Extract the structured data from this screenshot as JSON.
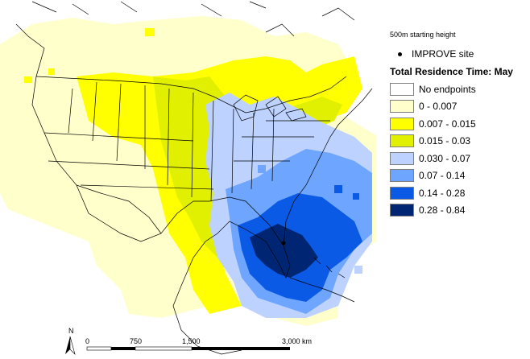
{
  "legend": {
    "subtitle": "500m starting height",
    "site_label": "IMPROVE site",
    "title": "Total Residence Time: May",
    "classes": [
      {
        "label": "No endpoints",
        "color": "#ffffff"
      },
      {
        "label": "0 - 0.007",
        "color": "#ffffcc"
      },
      {
        "label": "0.007 - 0.015",
        "color": "#ffff00"
      },
      {
        "label": "0.015 - 0.03",
        "color": "#e1f000"
      },
      {
        "label": "0.030 - 0.07",
        "color": "#bed2ff"
      },
      {
        "label": "0.07 - 0.14",
        "color": "#6ea5ff"
      },
      {
        "label": "0.14 - 0.28",
        "color": "#0a5ae6"
      },
      {
        "label": "0.28 - 0.84",
        "color": "#002673"
      }
    ]
  },
  "scale_bar": {
    "ticks": [
      "0",
      "750",
      "1,500",
      "3,000 km"
    ],
    "north_label": "N"
  }
}
